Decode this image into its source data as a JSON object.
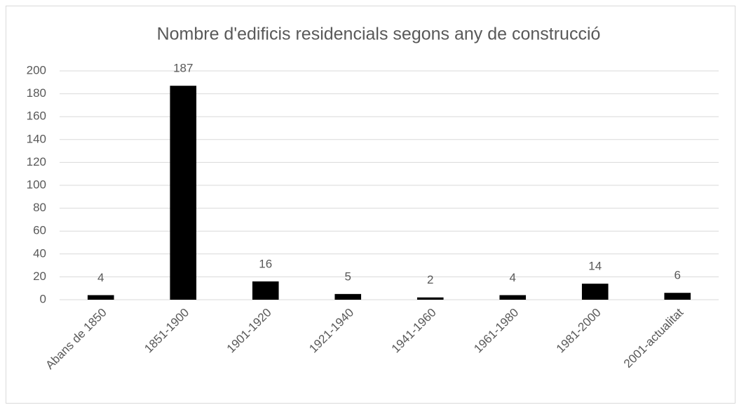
{
  "chart_data": {
    "type": "bar",
    "title": "Nombre d'edificis residencials segons any de construcció",
    "categories": [
      "Abans de 1850",
      "1851-1900",
      "1901-1920",
      "1921-1940",
      "1941-1960",
      "1961-1980",
      "1981-2000",
      "2001-actualitat"
    ],
    "values": [
      4,
      187,
      16,
      5,
      2,
      4,
      14,
      6
    ],
    "color": "#000000",
    "ylim": [
      0,
      200
    ],
    "yticks": [
      0,
      20,
      40,
      60,
      80,
      100,
      120,
      140,
      160,
      180,
      200
    ],
    "grid": true
  }
}
